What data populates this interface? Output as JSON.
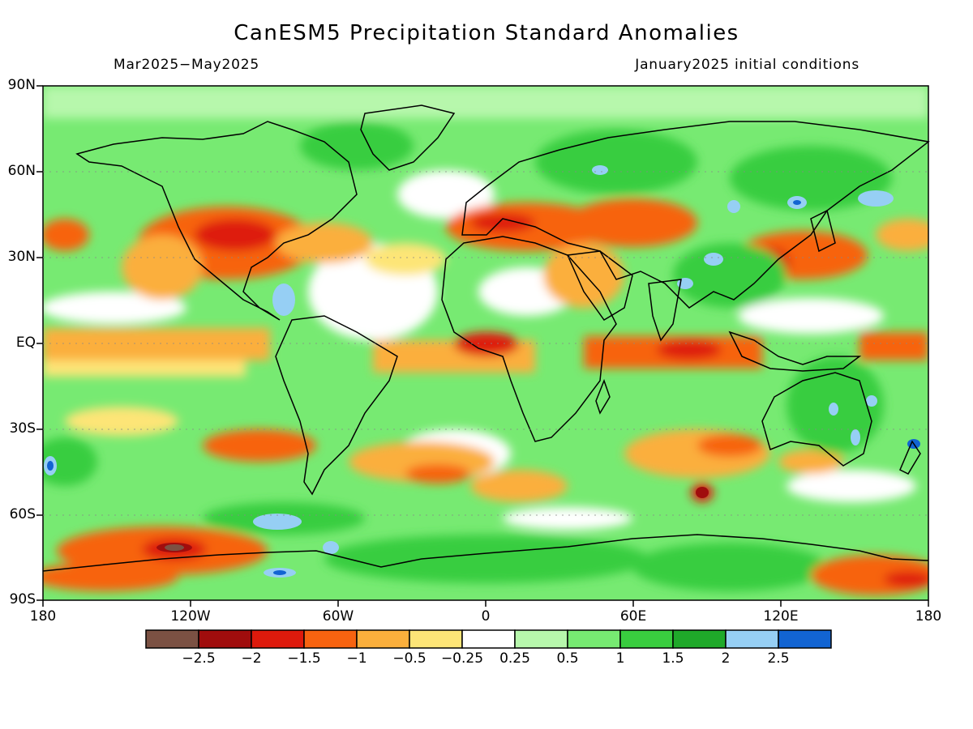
{
  "title": "CanESM5 Precipitation Standard Anomalies",
  "subtitle_left": "Mar2025−May2025",
  "subtitle_right": "January2025 initial conditions",
  "lat_labels": [
    "90N",
    "60N",
    "30N",
    "EQ",
    "30S",
    "60S",
    "90S"
  ],
  "lon_labels": [
    "180",
    "120W",
    "60W",
    "0",
    "60E",
    "120E",
    "180"
  ],
  "colorbar": {
    "labels": [
      "−2.5",
      "−2",
      "−1.5",
      "−1",
      "−0.5",
      "−0.25",
      "0.25",
      "0.5",
      "1",
      "1.5",
      "2",
      "2.5"
    ],
    "colors": [
      "#7b5143",
      "#a00d0d",
      "#de1a0c",
      "#f76310",
      "#fbaf3c",
      "#fde577",
      "#ffffff",
      "#b7f7ac",
      "#77ea72",
      "#39cd3f",
      "#1fa92a",
      "#96cff4",
      "#1264d2"
    ]
  },
  "map_colors": {
    "land_outline": "#000000",
    "frame": "#000000"
  }
}
